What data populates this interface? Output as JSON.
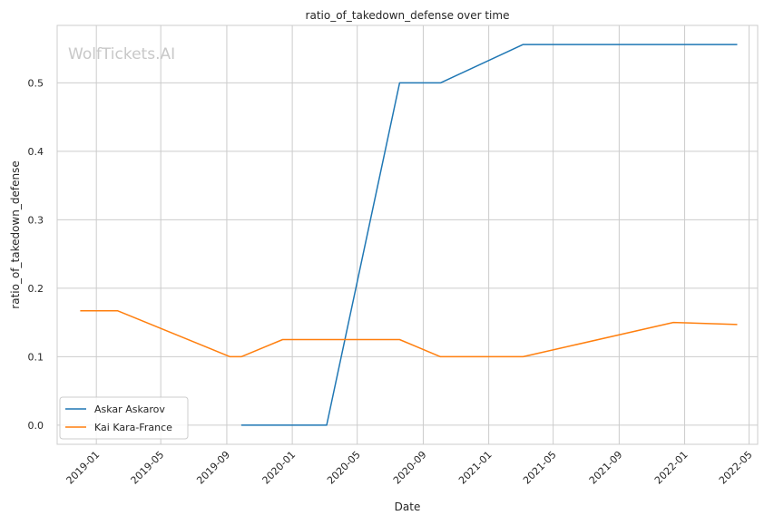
{
  "chart_data": {
    "type": "line",
    "title": "ratio_of_takedown_defense over time",
    "xlabel": "Date",
    "ylabel": "ratio_of_takedown_defense",
    "watermark": "WolfTickets.AI",
    "x_ticks": [
      "2019-01",
      "2019-05",
      "2019-09",
      "2020-01",
      "2020-05",
      "2020-09",
      "2021-01",
      "2021-05",
      "2021-09",
      "2022-01",
      "2022-05"
    ],
    "y_ticks": [
      "0.0",
      "0.1",
      "0.2",
      "0.3",
      "0.4",
      "0.5"
    ],
    "x_range": [
      "2018-10-20",
      "2022-05-17"
    ],
    "ylim": [
      -0.028,
      0.584
    ],
    "grid": true,
    "legend_position": "lower-left",
    "series": [
      {
        "name": "Askar Askarov",
        "color": "#1f77b4",
        "points": [
          {
            "x": "2019-09-28",
            "y": 0.0
          },
          {
            "x": "2020-03-05",
            "y": 0.0
          },
          {
            "x": "2020-07-19",
            "y": 0.5
          },
          {
            "x": "2020-10-03",
            "y": 0.5
          },
          {
            "x": "2021-03-06",
            "y": 0.556
          },
          {
            "x": "2022-04-09",
            "y": 0.556
          }
        ]
      },
      {
        "name": "Kai Kara-France",
        "color": "#ff7f0e",
        "points": [
          {
            "x": "2018-12-02",
            "y": 0.167
          },
          {
            "x": "2019-02-10",
            "y": 0.167
          },
          {
            "x": "2019-09-07",
            "y": 0.1
          },
          {
            "x": "2019-09-28",
            "y": 0.1
          },
          {
            "x": "2019-12-14",
            "y": 0.125
          },
          {
            "x": "2020-07-19",
            "y": 0.125
          },
          {
            "x": "2020-10-03",
            "y": 0.1
          },
          {
            "x": "2021-03-06",
            "y": 0.1
          },
          {
            "x": "2021-12-11",
            "y": 0.15
          },
          {
            "x": "2022-04-09",
            "y": 0.147
          }
        ]
      }
    ]
  }
}
